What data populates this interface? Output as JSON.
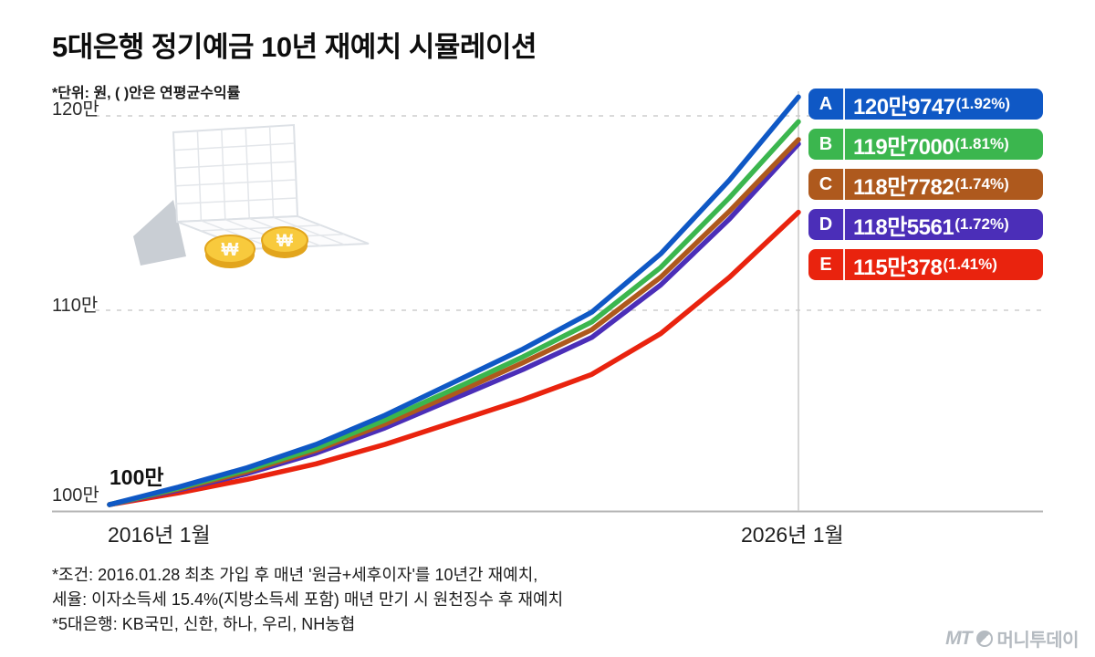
{
  "subtitle": "*단위: 원, ( )안은 연평균수익률",
  "start_annotation": "100만",
  "footnotes": [
    "*조건: 2016.01.28 최초 가입 후 매년 '원금+세후이자'를 10년간 재예치,",
    "세율: 이자소득세 15.4%(지방소득세 포함) 매년 만기 시 원천징수 후 재예치",
    "*5대은행: KB국민, 신한, 하나, 우리, NH농협"
  ],
  "logo": {
    "prefix": "MT",
    "name": "머니투데이"
  },
  "chart_data": {
    "type": "line",
    "title": "5대은행 정기예금 10년 재예치 시뮬레이션",
    "unit": "만원",
    "x_years": [
      2016,
      2017,
      2018,
      2019,
      2020,
      2021,
      2022,
      2023,
      2024,
      2025,
      2026
    ],
    "x_tick_labels": [
      "2016년 1월",
      "2026년 1월"
    ],
    "y_tick_labels": [
      "100만",
      "110만",
      "120만"
    ],
    "ylim": [
      100,
      121.5
    ],
    "gridlines_y": [
      110,
      120
    ],
    "grid_style": "dashed",
    "legend_position": "right",
    "series": [
      {
        "name": "A",
        "color": "#0f58c5",
        "final_label": "120만9747",
        "rate_label": "(1.92%)",
        "final_won": 1209747,
        "avg_annual_return_pct": 1.92,
        "values_10k_won": [
          100,
          100.9,
          101.9,
          103.1,
          104.6,
          106.3,
          108.0,
          109.9,
          112.9,
          116.7,
          120.97
        ]
      },
      {
        "name": "B",
        "color": "#3bb64e",
        "final_label": "119만7000",
        "rate_label": "(1.81%)",
        "final_won": 1197000,
        "avg_annual_return_pct": 1.81,
        "values_10k_won": [
          100,
          100.85,
          101.8,
          102.9,
          104.35,
          105.95,
          107.6,
          109.4,
          112.2,
          115.8,
          119.7
        ]
      },
      {
        "name": "C",
        "color": "#ae591d",
        "final_label": "118만7782",
        "rate_label": "(1.74%)",
        "final_won": 1187782,
        "avg_annual_return_pct": 1.74,
        "values_10k_won": [
          100,
          100.8,
          101.7,
          102.8,
          104.15,
          105.7,
          107.3,
          109.0,
          111.7,
          115.1,
          118.78
        ]
      },
      {
        "name": "D",
        "color": "#4b2eb8",
        "final_label": "118만5561",
        "rate_label": "(1.72%)",
        "final_won": 1185561,
        "avg_annual_return_pct": 1.72,
        "values_10k_won": [
          100,
          100.75,
          101.6,
          102.65,
          103.95,
          105.45,
          106.95,
          108.6,
          111.3,
          114.7,
          118.56
        ]
      },
      {
        "name": "E",
        "color": "#e9230e",
        "final_label": "115만378",
        "rate_label": "(1.41%)",
        "final_won": 1150378,
        "avg_annual_return_pct": 1.41,
        "values_10k_won": [
          100,
          100.6,
          101.3,
          102.1,
          103.1,
          104.25,
          105.4,
          106.7,
          108.8,
          111.7,
          115.04
        ]
      }
    ]
  }
}
